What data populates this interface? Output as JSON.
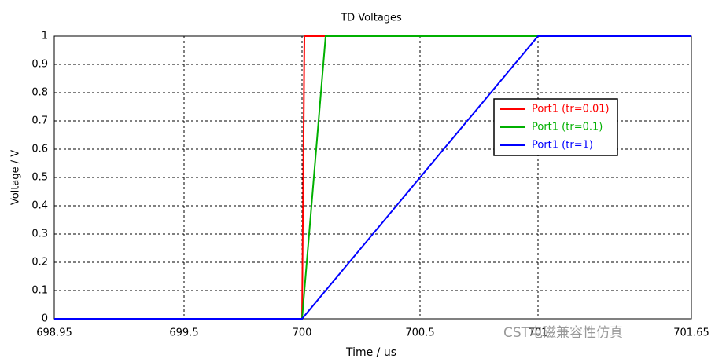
{
  "chart_data": {
    "type": "line",
    "title": "TD Voltages",
    "x_label": "Time / us",
    "y_label": "Voltage / V",
    "xlim": [
      698.95,
      701.65
    ],
    "xticks": [
      698.95,
      699.5,
      700,
      700.5,
      701,
      701.65
    ],
    "ylim": [
      0,
      1
    ],
    "yticks": [
      0,
      0.1,
      0.2,
      0.3,
      0.4,
      0.5,
      0.6,
      0.7,
      0.8,
      0.9,
      1
    ],
    "grid": true,
    "legend": "upper right",
    "series": [
      {
        "name": "Port1 (tr=0.01)",
        "color": "#ff0000",
        "x": [
          698.95,
          700,
          700.01,
          701.65
        ],
        "values": [
          0,
          0,
          1,
          1
        ]
      },
      {
        "name": "Port1 (tr=0.1)",
        "color": "#00b000",
        "x": [
          698.95,
          700,
          700.1,
          701.65
        ],
        "values": [
          0,
          0,
          1,
          1
        ]
      },
      {
        "name": "Port1 (tr=1)",
        "color": "#0000ff",
        "x": [
          698.95,
          700,
          701,
          701.65
        ],
        "values": [
          0,
          0,
          1,
          1
        ]
      }
    ],
    "watermark": "CST电磁兼容性仿真"
  }
}
